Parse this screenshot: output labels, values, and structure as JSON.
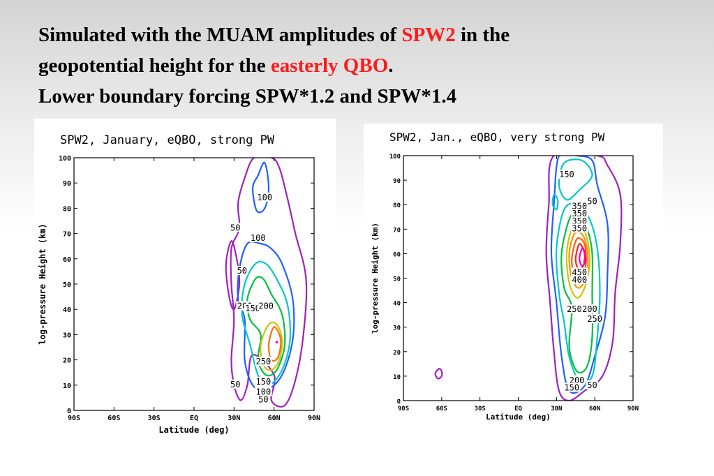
{
  "slide": {
    "title_line1_a": "Simulated with the MUAM amplitudes of ",
    "title_line1_hl": "SPW2",
    "title_line1_b": " in the",
    "title_line2_a": "geopotential height for the ",
    "title_line2_hl": "easterly QBO",
    "title_line2_b": ".",
    "title_line3": "Lower boundary forcing SPW*1.2 and SPW*1.4",
    "highlight_color": "#ff1a1a"
  },
  "chart_data": [
    {
      "type": "contour",
      "title": "SPW2, January, eQBO, strong PW",
      "xlabel": "Latitude (deg)",
      "ylabel": "log-pressure Height (km)",
      "xlim": [
        -90,
        90
      ],
      "ylim": [
        0,
        100
      ],
      "x_ticks": [
        -90,
        -60,
        -30,
        0,
        30,
        60,
        90
      ],
      "x_tick_labels": [
        "90S",
        "60S",
        "30S",
        "EQ",
        "30N",
        "60N",
        "90N"
      ],
      "y_ticks": [
        0,
        10,
        20,
        30,
        40,
        50,
        60,
        70,
        80,
        90,
        100
      ],
      "y_tick_labels": [
        "0",
        "10",
        "20",
        "30",
        "40",
        "50",
        "60",
        "70",
        "80",
        "90",
        "100"
      ],
      "levels": [
        {
          "value": 50,
          "color": "#a020c0"
        },
        {
          "value": 100,
          "color": "#2060ff"
        },
        {
          "value": 150,
          "color": "#00c8c8"
        },
        {
          "value": 200,
          "color": "#00c040"
        },
        {
          "value": 250,
          "color": "#c8c800"
        },
        {
          "value": 300,
          "color": "#ff7000"
        }
      ],
      "contour_labels": [
        {
          "text": "100",
          "lat": 53,
          "z": 84
        },
        {
          "text": "50",
          "lat": 31,
          "z": 72
        },
        {
          "text": "100",
          "lat": 48,
          "z": 68
        },
        {
          "text": "50",
          "lat": 36,
          "z": 55
        },
        {
          "text": "200",
          "lat": 38,
          "z": 41
        },
        {
          "text": "150",
          "lat": 44,
          "z": 40
        },
        {
          "text": "200",
          "lat": 54,
          "z": 41
        },
        {
          "text": "250",
          "lat": 52,
          "z": 19
        },
        {
          "text": "50",
          "lat": 31,
          "z": 10
        },
        {
          "text": "150",
          "lat": 52,
          "z": 11
        },
        {
          "text": "100",
          "lat": 52,
          "z": 7
        },
        {
          "text": "50",
          "lat": 52,
          "z": 4
        }
      ],
      "maximum": {
        "lat": 62,
        "z": 27
      }
    },
    {
      "type": "contour",
      "title": "SPW2, Jan., eQBO, very strong PW",
      "xlabel": "Latitude (deg)",
      "ylabel": "log-pressure Height (km)",
      "xlim": [
        -90,
        90
      ],
      "ylim": [
        0,
        100
      ],
      "x_ticks": [
        -90,
        -60,
        -30,
        0,
        30,
        60,
        90
      ],
      "x_tick_labels": [
        "90S",
        "60S",
        "30S",
        "EQ",
        "30N",
        "60N",
        "90N"
      ],
      "y_ticks": [
        0,
        10,
        20,
        30,
        40,
        50,
        60,
        70,
        80,
        90,
        100
      ],
      "y_tick_labels": [
        "0",
        "10",
        "20",
        "30",
        "40",
        "50",
        "60",
        "70",
        "80",
        "90",
        "100"
      ],
      "levels": [
        {
          "value": 50,
          "color": "#a020c0"
        },
        {
          "value": 100,
          "color": "#2060ff"
        },
        {
          "value": 150,
          "color": "#00c8c8"
        },
        {
          "value": 200,
          "color": "#00c040"
        },
        {
          "value": 250,
          "color": "#c8c800"
        },
        {
          "value": 300,
          "color": "#ff9000"
        },
        {
          "value": 350,
          "color": "#ff6000"
        },
        {
          "value": 400,
          "color": "#ff2020"
        },
        {
          "value": 450,
          "color": "#ff00a0"
        }
      ],
      "contour_labels": [
        {
          "text": "150",
          "lat": 38,
          "z": 92
        },
        {
          "text": "50",
          "lat": 58,
          "z": 81
        },
        {
          "text": "350",
          "lat": 48,
          "z": 79
        },
        {
          "text": "350",
          "lat": 48,
          "z": 76
        },
        {
          "text": "350",
          "lat": 48,
          "z": 73
        },
        {
          "text": "350",
          "lat": 48,
          "z": 70
        },
        {
          "text": "450",
          "lat": 48,
          "z": 52
        },
        {
          "text": "400",
          "lat": 48,
          "z": 49
        },
        {
          "text": "250",
          "lat": 44,
          "z": 37
        },
        {
          "text": "200",
          "lat": 56,
          "z": 37
        },
        {
          "text": "250",
          "lat": 60,
          "z": 33
        },
        {
          "text": "200",
          "lat": 46,
          "z": 8
        },
        {
          "text": "150",
          "lat": 42,
          "z": 5
        },
        {
          "text": "50",
          "lat": 58,
          "z": 6
        }
      ],
      "maximum": {
        "lat": 52,
        "z": 57
      }
    }
  ]
}
